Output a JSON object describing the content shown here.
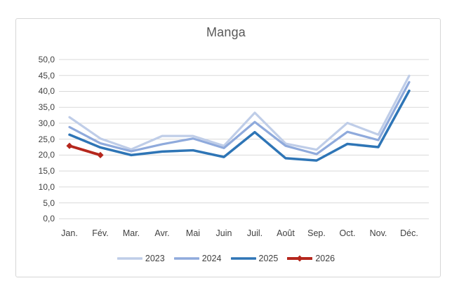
{
  "chart_data": {
    "type": "line",
    "title": "Manga",
    "categories": [
      "Jan.",
      "Fév.",
      "Mar.",
      "Avr.",
      "Mai",
      "Juin",
      "Juil.",
      "Août",
      "Sep.",
      "Oct.",
      "Nov.",
      "Déc."
    ],
    "y_axis": {
      "min": 0,
      "max": 50,
      "step": 5,
      "tick_labels": [
        "0,0",
        "5,0",
        "10,0",
        "15,0",
        "20,0",
        "25,0",
        "30,0",
        "35,0",
        "40,0",
        "45,0",
        "50,0"
      ]
    },
    "series": [
      {
        "name": "2023",
        "color": "#bfcde8",
        "marker": "none",
        "stroke_width": 3.2,
        "values": [
          31.9,
          25.2,
          21.8,
          26.0,
          26.0,
          22.9,
          33.3,
          23.6,
          21.7,
          30.1,
          26.4,
          44.9
        ]
      },
      {
        "name": "2024",
        "color": "#8faadc",
        "marker": "none",
        "stroke_width": 3.2,
        "values": [
          28.8,
          23.7,
          21.2,
          23.4,
          25.2,
          22.2,
          30.4,
          22.9,
          20.3,
          27.3,
          24.7,
          42.9
        ]
      },
      {
        "name": "2025",
        "color": "#2e75b6",
        "marker": "none",
        "stroke_width": 3.5,
        "values": [
          26.4,
          22.4,
          20.0,
          21.1,
          21.5,
          19.4,
          27.2,
          19.0,
          18.3,
          23.5,
          22.5,
          40.2
        ]
      },
      {
        "name": "2026",
        "color": "#b5271d",
        "marker": "diamond",
        "stroke_width": 3.8,
        "values": [
          22.9,
          20.0
        ]
      }
    ],
    "legend": {
      "position": "bottom",
      "entries": [
        "2023",
        "2024",
        "2025",
        "2026"
      ]
    },
    "grid": true,
    "gridline_color": "#d9d9d9",
    "frame_border_color": "#d6d6d6",
    "text_color": "#404040",
    "title_color": "#595959"
  }
}
